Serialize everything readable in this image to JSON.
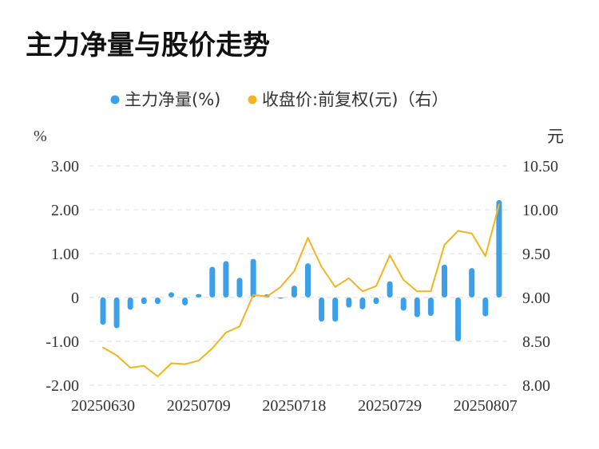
{
  "title": "主力净量与股价走势",
  "colors": {
    "bar": "#3b9fea",
    "line": "#f2b41f",
    "grid": "#dddddd",
    "text": "#333333",
    "title": "#111111"
  },
  "chart_data": {
    "type": "bar+line",
    "legend": {
      "position": "top-center",
      "items": [
        {
          "name": "主力净量(%)",
          "color": "#3b9fea",
          "marker": "circle"
        },
        {
          "name": "收盘价:前复权(元)（右）",
          "color": "#f2b41f",
          "marker": "circle"
        }
      ]
    },
    "left_axis": {
      "unit": "%",
      "min": -2.0,
      "max": 3.0,
      "ticks": [
        3.0,
        2.0,
        1.0,
        0,
        -1.0,
        -2.0
      ],
      "tick_labels": [
        "3.00",
        "2.00",
        "1.00",
        "0",
        "-1.00",
        "-2.00"
      ]
    },
    "right_axis": {
      "unit": "元",
      "min": 8.0,
      "max": 10.5,
      "ticks": [
        10.5,
        10.0,
        9.5,
        9.0,
        8.5,
        8.0
      ],
      "tick_labels": [
        "10.50",
        "10.00",
        "9.50",
        "9.00",
        "8.50",
        "8.00"
      ]
    },
    "x_tick_labels": [
      {
        "index": 0,
        "label": "20250630"
      },
      {
        "index": 7,
        "label": "20250709"
      },
      {
        "index": 14,
        "label": "20250718"
      },
      {
        "index": 21,
        "label": "20250729"
      },
      {
        "index": 28,
        "label": "20250807"
      }
    ],
    "grid": true,
    "series": [
      {
        "name": "主力净量(%)",
        "type": "bar",
        "axis": "left",
        "values": [
          -0.62,
          -0.7,
          -0.28,
          -0.15,
          -0.15,
          0.12,
          -0.18,
          0.08,
          0.7,
          0.83,
          0.45,
          0.88,
          0.07,
          -0.02,
          0.27,
          0.78,
          -0.55,
          -0.55,
          -0.23,
          -0.27,
          -0.15,
          0.37,
          -0.3,
          -0.45,
          -0.42,
          0.75,
          -1.0,
          0.67,
          -0.43,
          2.22
        ]
      },
      {
        "name": "收盘价:前复权(元)",
        "type": "line",
        "axis": "right",
        "values": [
          8.43,
          8.34,
          8.2,
          8.22,
          8.1,
          8.25,
          8.24,
          8.28,
          8.42,
          8.6,
          8.67,
          9.03,
          9.01,
          9.12,
          9.3,
          9.68,
          9.35,
          9.12,
          9.22,
          9.07,
          9.13,
          9.48,
          9.2,
          9.07,
          9.07,
          9.6,
          9.76,
          9.73,
          9.47,
          10.06
        ]
      }
    ]
  }
}
